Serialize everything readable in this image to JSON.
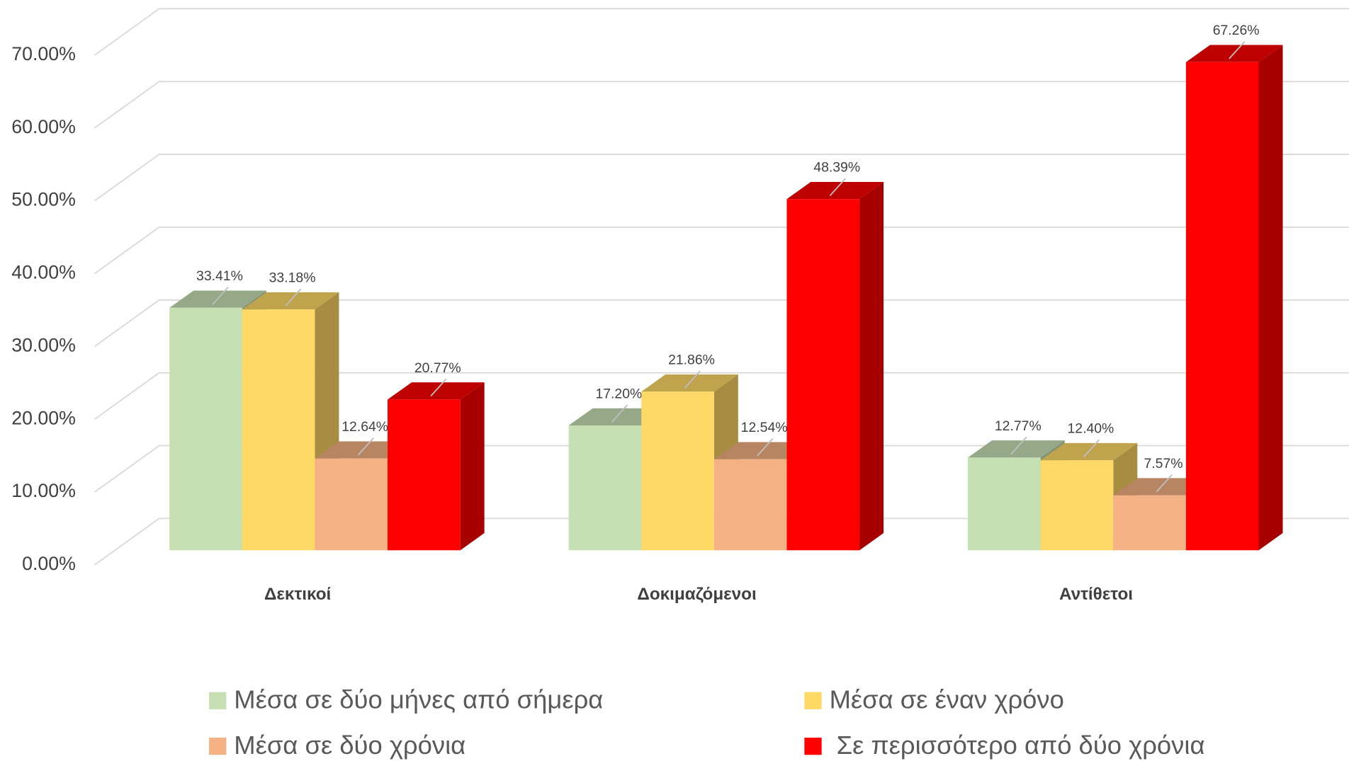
{
  "chart_data": {
    "type": "bar3d",
    "categories": [
      "Δεκτικοί",
      "Δοκιμαζόμενοι",
      "Αντίθετοι"
    ],
    "series": [
      {
        "name": "Μέσα σε δύο μήνες από σήμερα",
        "color": "#c6e0b4",
        "values": [
          33.41,
          17.2,
          12.77
        ],
        "value_labels": [
          "33.41%",
          "17.20%",
          "12.77%"
        ]
      },
      {
        "name": "Μέσα σε έναν χρόνο",
        "color": "#ffd966",
        "values": [
          33.18,
          21.86,
          12.4
        ],
        "value_labels": [
          "33.18%",
          "21.86%",
          "12.40%"
        ]
      },
      {
        "name": "Μέσα σε δύο χρόνια",
        "color": "#f4b183",
        "values": [
          12.64,
          12.54,
          7.57
        ],
        "value_labels": [
          "12.64%",
          "12.54%",
          "7.57%"
        ]
      },
      {
        "name": " Σε περισσότερο από δύο χρόνια",
        "color": "#ff0000",
        "values": [
          20.77,
          48.39,
          67.26
        ],
        "value_labels": [
          "20.77%",
          "48.39%",
          "67.26%"
        ]
      }
    ],
    "ylim": [
      0,
      70
    ],
    "yticks": [
      {
        "value": 0,
        "label": "0.00%"
      },
      {
        "value": 10,
        "label": "10.00%"
      },
      {
        "value": 20,
        "label": "20.00%"
      },
      {
        "value": 30,
        "label": "30.00%"
      },
      {
        "value": 40,
        "label": "40.00%"
      },
      {
        "value": 50,
        "label": "50.00%"
      },
      {
        "value": 60,
        "label": "60.00%"
      },
      {
        "value": 70,
        "label": "70.00%"
      }
    ],
    "grid": true
  }
}
